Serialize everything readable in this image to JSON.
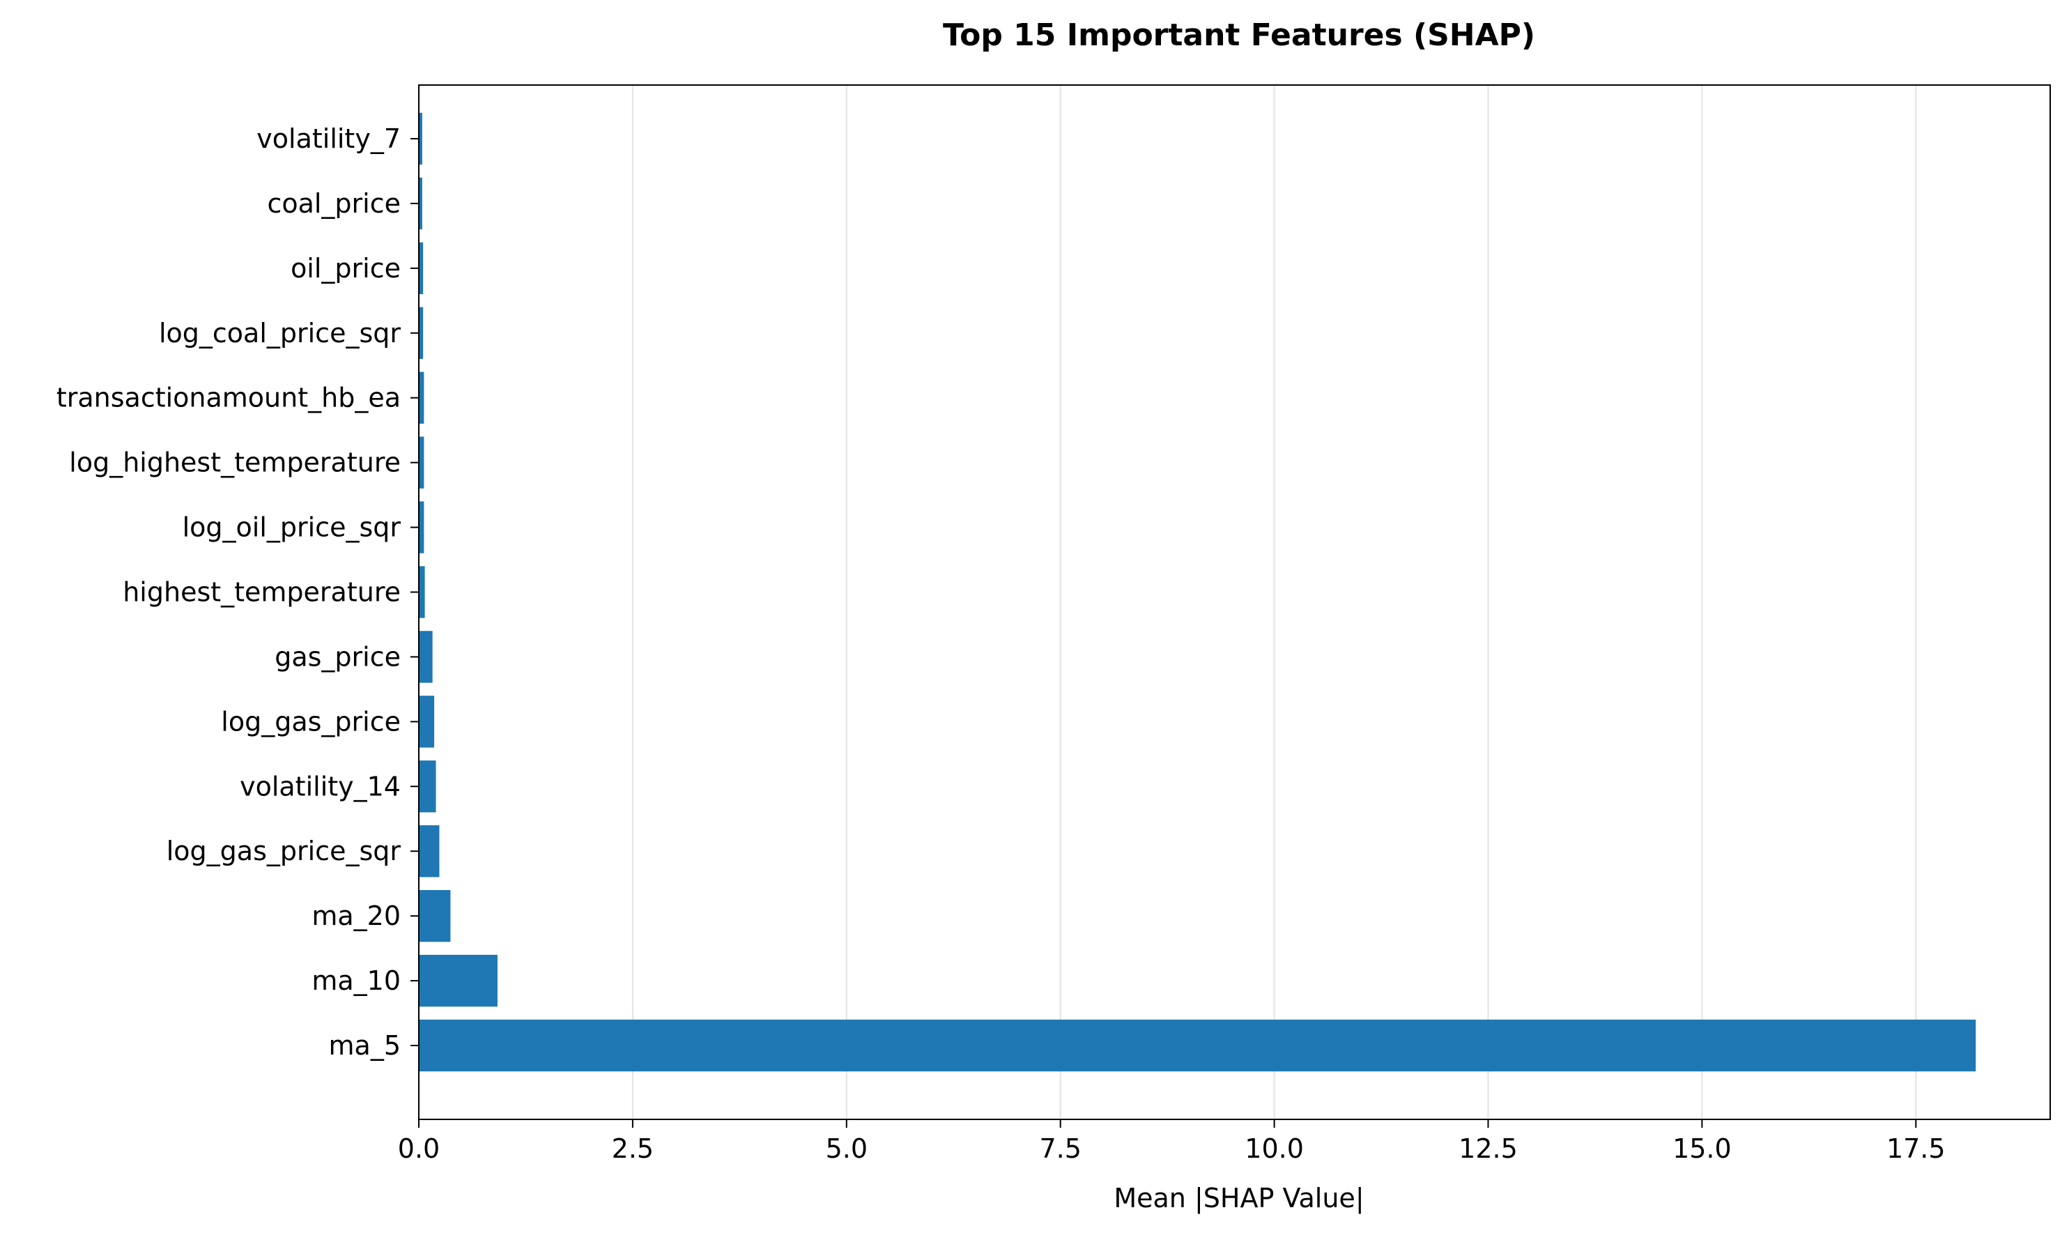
{
  "chart_data": {
    "type": "bar",
    "orientation": "horizontal",
    "title": "Top 15 Important Features (SHAP)",
    "xlabel": "Mean |SHAP Value|",
    "ylabel": "",
    "xlim": [
      0,
      19.07
    ],
    "xticks": [
      "0.0",
      "2.5",
      "5.0",
      "7.5",
      "10.0",
      "12.5",
      "15.0",
      "17.5"
    ],
    "xtick_values": [
      0,
      2.5,
      5.0,
      7.5,
      10.0,
      12.5,
      15.0,
      17.5
    ],
    "grid": "x",
    "bar_color": "#1f77b4",
    "categories": [
      "ma_5",
      "ma_10",
      "ma_20",
      "log_gas_price_sqr",
      "volatility_14",
      "log_gas_price",
      "gas_price",
      "highest_temperature",
      "log_oil_price_sqr",
      "log_highest_temperature",
      "transactionamount_hb_ea",
      "log_coal_price_sqr",
      "oil_price",
      "coal_price",
      "volatility_7"
    ],
    "values": [
      18.2,
      0.92,
      0.37,
      0.24,
      0.2,
      0.18,
      0.16,
      0.07,
      0.06,
      0.06,
      0.06,
      0.05,
      0.05,
      0.04,
      0.04
    ]
  }
}
